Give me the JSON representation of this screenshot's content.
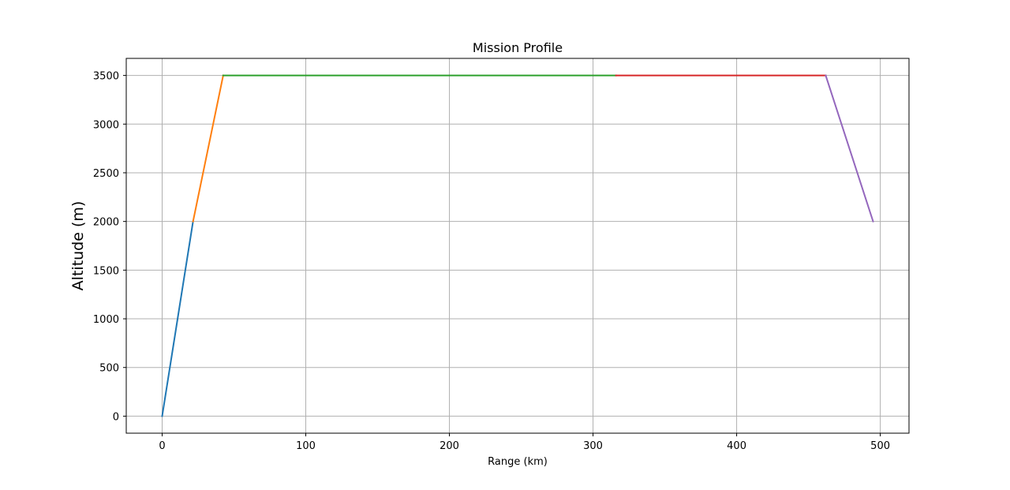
{
  "chart_data": {
    "type": "line",
    "title": "Mission Profile",
    "xlabel": "Range (km)",
    "ylabel": "Altitude (m)",
    "xlim": [
      -25,
      520
    ],
    "ylim": [
      -175,
      3675
    ],
    "xticks": [
      0,
      100,
      200,
      300,
      400,
      500
    ],
    "yticks": [
      0,
      500,
      1000,
      1500,
      2000,
      2500,
      3000,
      3500
    ],
    "grid": true,
    "series": [
      {
        "color": "#1f77b4",
        "x": [
          0,
          21.5
        ],
        "y": [
          0,
          2000
        ]
      },
      {
        "color": "#ff7f0e",
        "x": [
          21.5,
          42.5
        ],
        "y": [
          2000,
          3500
        ]
      },
      {
        "color": "#2ca02c",
        "x": [
          42.5,
          316
        ],
        "y": [
          3500,
          3500
        ]
      },
      {
        "color": "#d62728",
        "x": [
          316,
          462
        ],
        "y": [
          3500,
          3500
        ]
      },
      {
        "color": "#9467bd",
        "x": [
          462,
          495
        ],
        "y": [
          3500,
          2000
        ]
      }
    ]
  }
}
